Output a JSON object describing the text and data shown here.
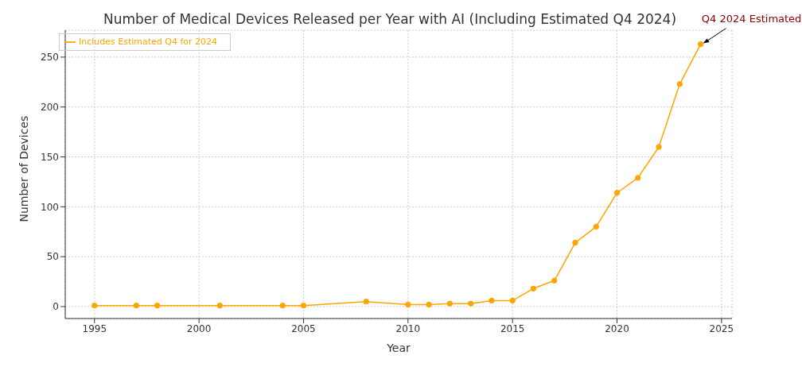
{
  "chart_data": {
    "type": "line",
    "title": "Number of Medical Devices Released per Year with AI (Including Estimated Q4 2024)",
    "xlabel": "Year",
    "ylabel": "Number of Devices",
    "x": [
      1995,
      1997,
      1998,
      2001,
      2004,
      2005,
      2008,
      2010,
      2011,
      2012,
      2013,
      2014,
      2015,
      2016,
      2017,
      2018,
      2019,
      2020,
      2021,
      2022,
      2023,
      2024
    ],
    "series": [
      {
        "name": "Includes Estimated Q4 for 2024",
        "color": "#ffa500",
        "values": [
          1,
          1,
          1,
          1,
          1,
          1,
          5,
          2,
          2,
          3,
          3,
          6,
          6,
          18,
          26,
          64,
          80,
          114,
          129,
          160,
          223,
          263
        ]
      }
    ],
    "xlim": [
      1993.6,
      2025.5
    ],
    "xticks": [
      1995,
      2000,
      2005,
      2010,
      2015,
      2020,
      2025
    ],
    "ylim": [
      -12,
      277
    ],
    "yticks": [
      0,
      50,
      100,
      150,
      200,
      250
    ],
    "grid": true,
    "legend": "top left",
    "marker": "circle",
    "line_style": "solid",
    "annotations": [
      {
        "text": "Q4 2024 Estimated",
        "x": 2024,
        "y": 263
      }
    ]
  }
}
